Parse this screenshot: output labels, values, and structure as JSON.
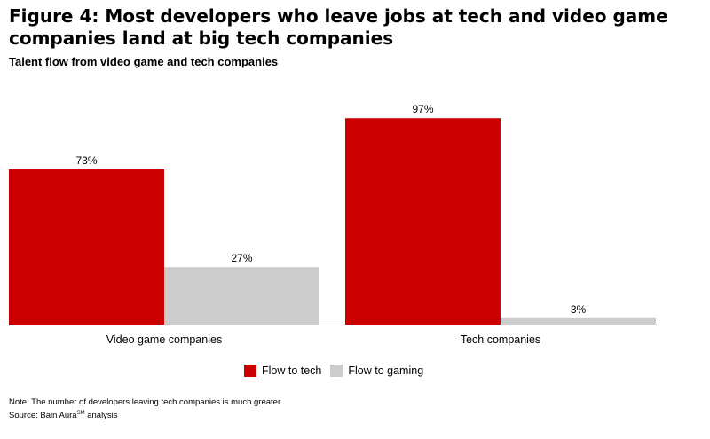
{
  "title": "Figure 4: Most developers who leave jobs at tech and video game companies land at big tech companies",
  "subtitle": "Talent flow from video game and tech companies",
  "chart_data": {
    "type": "bar",
    "categories": [
      "Video game companies",
      "Tech companies"
    ],
    "series": [
      {
        "name": "Flow to tech",
        "values": [
          73,
          97
        ],
        "color": "#cc0000"
      },
      {
        "name": "Flow to gaming",
        "values": [
          27,
          3
        ],
        "color": "#cccccc"
      }
    ],
    "ylim": [
      0,
      100
    ],
    "value_suffix": "%",
    "legend": "bottom",
    "grid": false
  },
  "legend": {
    "tech_label": "Flow to tech",
    "gaming_label": "Flow to gaming"
  },
  "notes": {
    "note": "Note: The number of developers leaving tech companies is much greater.",
    "source_prefix": "Source: Bain Aura",
    "source_sup": "SM",
    "source_suffix": " analysis"
  }
}
